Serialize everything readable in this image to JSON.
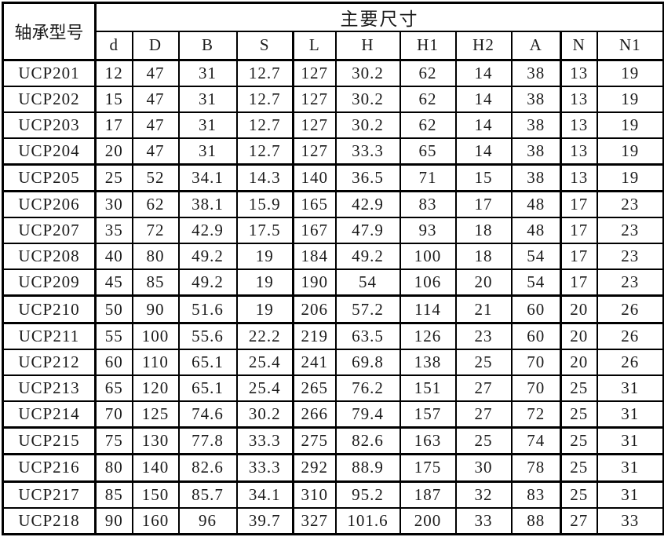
{
  "header": {
    "row_label": "轴承型号",
    "group_label": "主要尺寸",
    "columns": [
      "d",
      "D",
      "B",
      "S",
      "L",
      "H",
      "H1",
      "H2",
      "A",
      "N",
      "N1"
    ]
  },
  "rows": [
    {
      "model": "UCP201",
      "values": [
        12,
        47,
        31,
        12.7,
        127,
        30.2,
        62,
        14,
        38,
        13,
        19
      ]
    },
    {
      "model": "UCP202",
      "values": [
        15,
        47,
        31,
        12.7,
        127,
        30.2,
        62,
        14,
        38,
        13,
        19
      ]
    },
    {
      "model": "UCP203",
      "values": [
        17,
        47,
        31,
        12.7,
        127,
        30.2,
        62,
        14,
        38,
        13,
        19
      ]
    },
    {
      "model": "UCP204",
      "values": [
        20,
        47,
        31,
        12.7,
        127,
        33.3,
        65,
        14,
        38,
        13,
        19
      ]
    },
    {
      "model": "UCP205",
      "values": [
        25,
        52,
        34.1,
        14.3,
        140,
        36.5,
        71,
        15,
        38,
        13,
        19
      ]
    },
    {
      "model": "UCP206",
      "values": [
        30,
        62,
        38.1,
        15.9,
        165,
        42.9,
        83,
        17,
        48,
        17,
        23
      ]
    },
    {
      "model": "UCP207",
      "values": [
        35,
        72,
        42.9,
        17.5,
        167,
        47.9,
        93,
        18,
        48,
        17,
        23
      ]
    },
    {
      "model": "UCP208",
      "values": [
        40,
        80,
        49.2,
        19,
        184,
        49.2,
        100,
        18,
        54,
        17,
        23
      ]
    },
    {
      "model": "UCP209",
      "values": [
        45,
        85,
        49.2,
        19,
        190,
        54,
        106,
        20,
        54,
        17,
        23
      ]
    },
    {
      "model": "UCP210",
      "values": [
        50,
        90,
        51.6,
        19,
        206,
        57.2,
        114,
        21,
        60,
        20,
        26
      ]
    },
    {
      "model": "UCP211",
      "values": [
        55,
        100,
        55.6,
        22.2,
        219,
        63.5,
        126,
        23,
        60,
        20,
        26
      ]
    },
    {
      "model": "UCP212",
      "values": [
        60,
        110,
        65.1,
        25.4,
        241,
        69.8,
        138,
        25,
        70,
        20,
        26
      ]
    },
    {
      "model": "UCP213",
      "values": [
        65,
        120,
        65.1,
        25.4,
        265,
        76.2,
        151,
        27,
        70,
        25,
        31
      ]
    },
    {
      "model": "UCP214",
      "values": [
        70,
        125,
        74.6,
        30.2,
        266,
        79.4,
        157,
        27,
        72,
        25,
        31
      ]
    },
    {
      "model": "UCP215",
      "values": [
        75,
        130,
        77.8,
        33.3,
        275,
        82.6,
        163,
        25,
        74,
        25,
        31
      ]
    },
    {
      "model": "UCP216",
      "values": [
        80,
        140,
        82.6,
        33.3,
        292,
        88.9,
        175,
        30,
        78,
        25,
        31
      ]
    },
    {
      "model": "UCP217",
      "values": [
        85,
        150,
        85.7,
        34.1,
        310,
        95.2,
        187,
        32,
        83,
        25,
        31
      ]
    },
    {
      "model": "UCP218",
      "values": [
        90,
        160,
        96,
        39.7,
        327,
        101.6,
        200,
        33,
        88,
        27,
        33
      ]
    }
  ],
  "colors": {
    "border": "#000000",
    "text": "#1b1b1b",
    "background": "#ffffff"
  }
}
